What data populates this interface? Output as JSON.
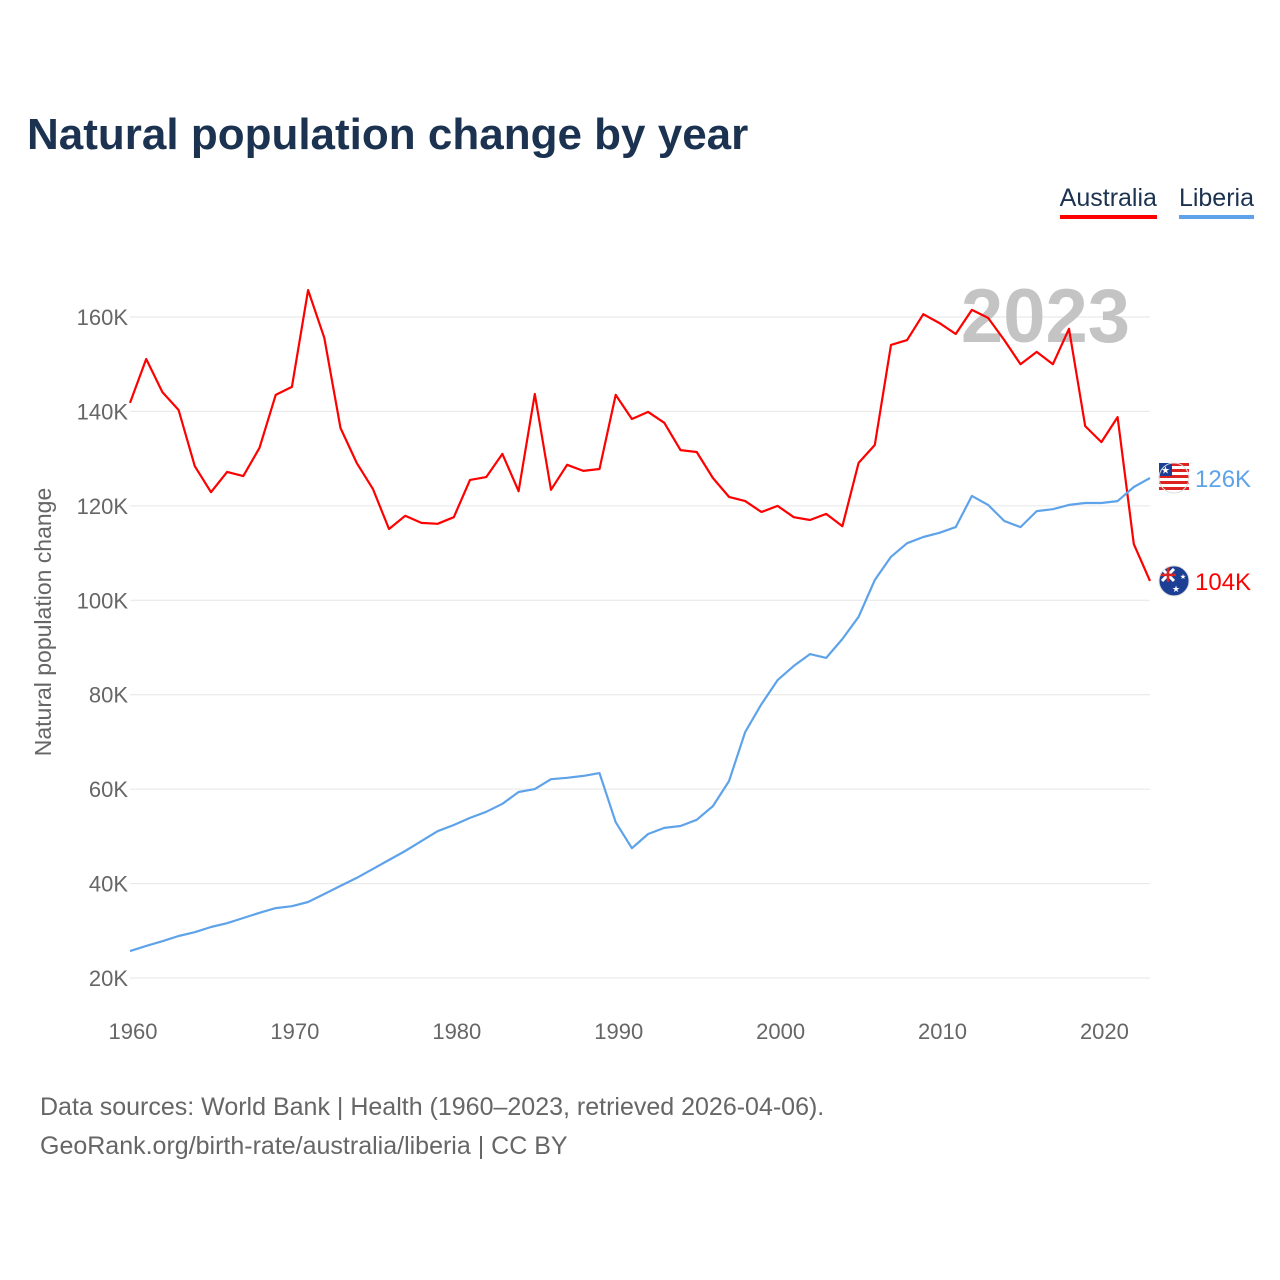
{
  "title": "Natural population change by year",
  "legend": [
    {
      "label": "Australia",
      "color": "#ff0000"
    },
    {
      "label": "Liberia",
      "color": "#5ea3ea"
    }
  ],
  "year_watermark": "2023",
  "footer": {
    "line1": "Data sources: World Bank | Health (1960–2023, retrieved 2026-04-06).",
    "line2": "GeoRank.org/birth-rate/australia/liberia | CC BY"
  },
  "chart_data": {
    "type": "line",
    "title": "Natural population change by year",
    "xlabel": "",
    "ylabel": "Natural population change",
    "xlim": [
      1960,
      2023
    ],
    "ylim": [
      20000,
      160000
    ],
    "yticks": [
      20000,
      40000,
      60000,
      80000,
      100000,
      120000,
      140000,
      160000
    ],
    "ytick_labels": [
      "20K",
      "40K",
      "60K",
      "80K",
      "100K",
      "120K",
      "140K",
      "160K"
    ],
    "xticks": [
      1960,
      1970,
      1980,
      1990,
      2000,
      2010,
      2020
    ],
    "xtick_labels": [
      "1960",
      "1970",
      "1980",
      "1990",
      "2000",
      "2010",
      "2020"
    ],
    "grid": true,
    "legend_position": "top-right",
    "x_start": 1960,
    "series": [
      {
        "name": "Australia",
        "color": "#ff0000",
        "end_label": "104K",
        "flag": "australia-flag",
        "values": [
          141800,
          151100,
          144100,
          140300,
          128400,
          122900,
          127200,
          126300,
          132300,
          143500,
          145200,
          165700,
          155600,
          136500,
          129100,
          123600,
          115100,
          117900,
          116400,
          116200,
          117600,
          125500,
          126100,
          131000,
          123100,
          143700,
          123400,
          128700,
          127400,
          127800,
          143500,
          138400,
          139900,
          137600,
          131800,
          131400,
          125900,
          121900,
          121000,
          118700,
          120000,
          117600,
          117000,
          118300,
          115700,
          129100,
          132900,
          154100,
          155100,
          160600,
          158700,
          156400,
          161500,
          159800,
          155100,
          150000,
          152600,
          150000,
          157500,
          136900,
          133500,
          138800,
          111900,
          104100
        ]
      },
      {
        "name": "Liberia",
        "color": "#5ea3ea",
        "end_label": "126K",
        "flag": "liberia-flag",
        "values": [
          25700,
          26800,
          27800,
          28900,
          29700,
          30800,
          31600,
          32700,
          33800,
          34800,
          35200,
          36100,
          37800,
          39500,
          41200,
          43100,
          45000,
          46900,
          49000,
          51100,
          52400,
          53900,
          55200,
          56900,
          59400,
          60000,
          62100,
          62400,
          62800,
          63400,
          53000,
          47500,
          50500,
          51800,
          52200,
          53500,
          56400,
          61700,
          72100,
          78000,
          83100,
          86100,
          88600,
          87800,
          91800,
          96500,
          104300,
          109200,
          112100,
          113400,
          114300,
          115500,
          122100,
          120200,
          116800,
          115500,
          118900,
          119300,
          120200,
          120600,
          120600,
          121000,
          124000,
          125900
        ]
      }
    ]
  }
}
